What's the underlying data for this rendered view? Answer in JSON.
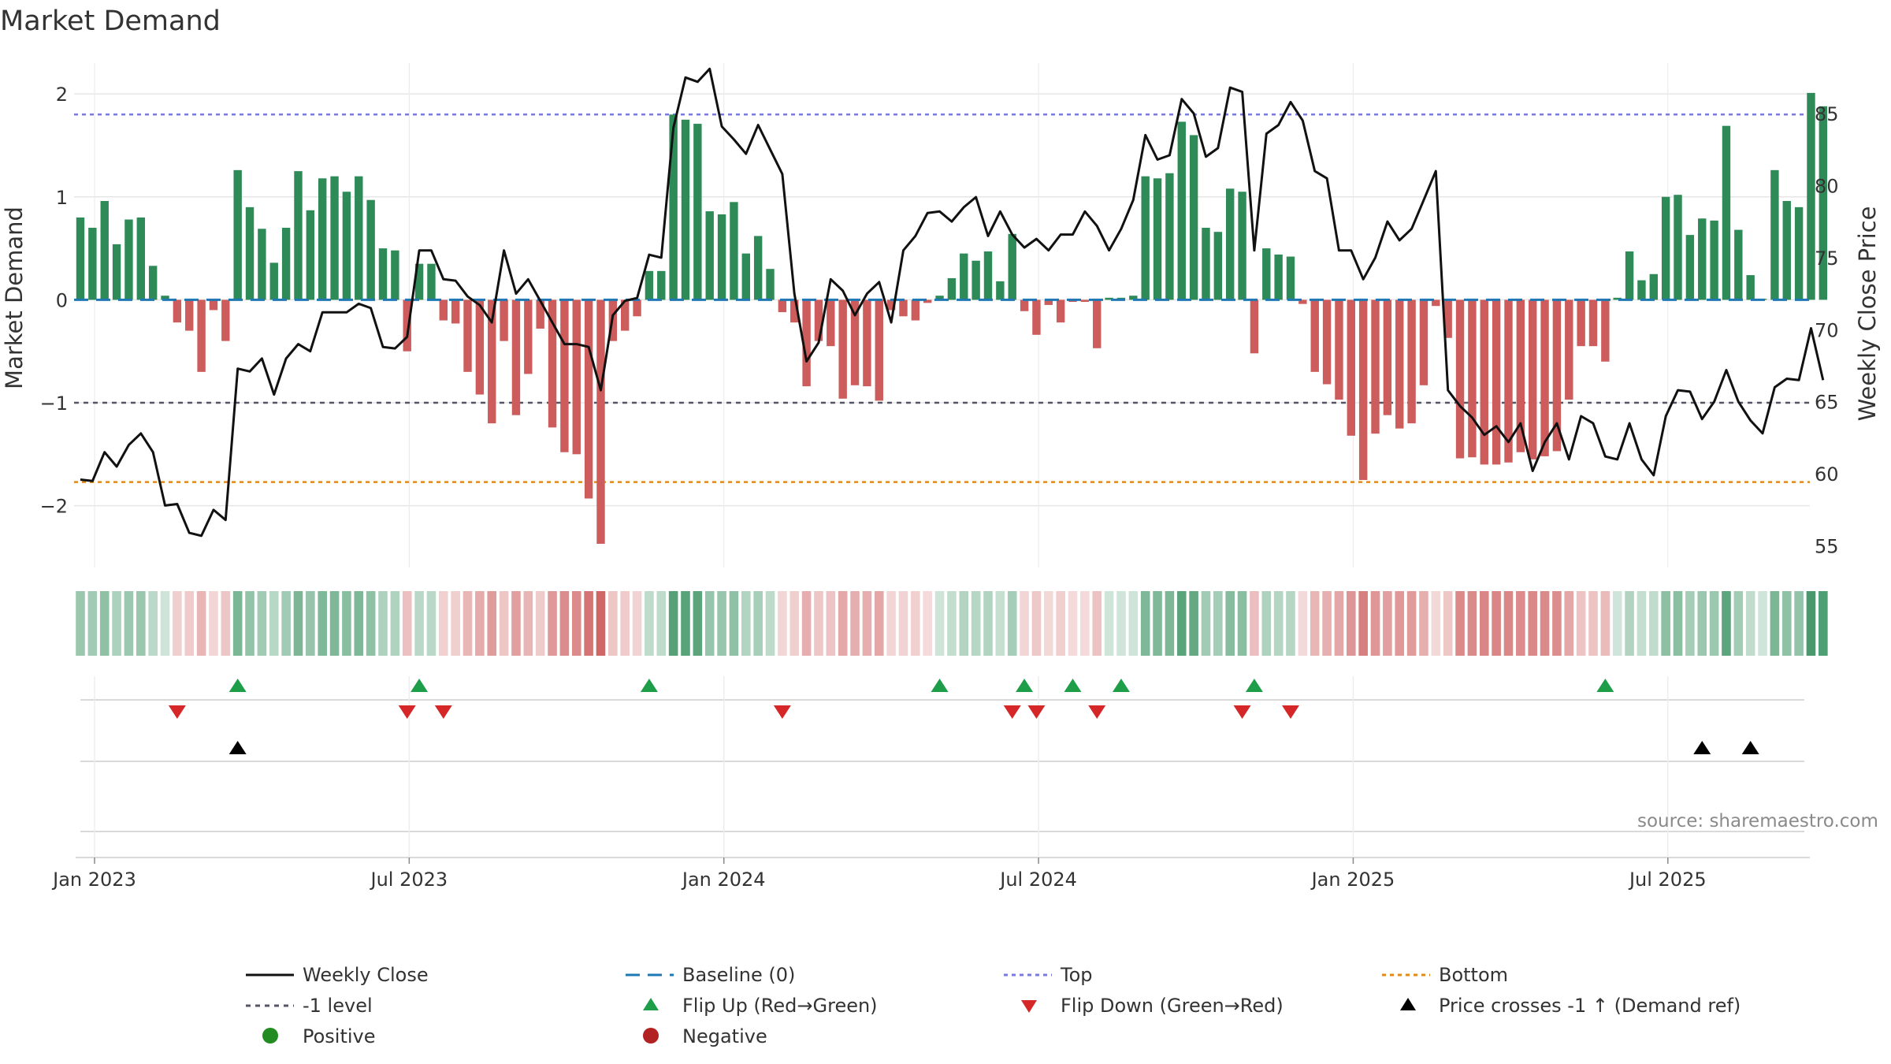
{
  "chart_data": {
    "type": "bar",
    "title": "Market Demand",
    "ylabel": "Market Demand",
    "y2label": "Weekly Close Price",
    "ylim": [
      -2.6,
      2.3
    ],
    "y2lim": [
      53.5,
      88.5
    ],
    "yticks": [
      "2",
      "1",
      "0",
      "−1",
      "−2"
    ],
    "ytick_values": [
      2,
      1,
      0,
      -1,
      -2
    ],
    "y2ticks": [
      "85",
      "80",
      "75",
      "70",
      "65",
      "60",
      "55"
    ],
    "y2tick_values": [
      85,
      80,
      75,
      70,
      65,
      60,
      55
    ],
    "xticks": [
      "Jan 2023",
      "Jul 2023",
      "Jan 2024",
      "Jul 2024",
      "Jan 2025",
      "Jul 2025"
    ],
    "xtick_weeks": [
      0,
      26,
      52,
      78,
      104,
      130
    ],
    "start_week": -1.5,
    "reference_lines": {
      "top": 1.8,
      "bottom": -1.77,
      "minus_one": -1,
      "baseline": 0
    },
    "series": [
      {
        "name": "Market Demand",
        "values": [
          0.8,
          0.7,
          0.96,
          0.54,
          0.78,
          0.8,
          0.33,
          0.04,
          -0.22,
          -0.3,
          -0.7,
          -0.1,
          -0.4,
          1.26,
          0.9,
          0.69,
          0.36,
          0.7,
          1.25,
          0.87,
          1.18,
          1.2,
          1.05,
          1.2,
          0.97,
          0.5,
          0.48,
          -0.5,
          0.35,
          0.35,
          -0.2,
          -0.23,
          -0.7,
          -0.92,
          -1.2,
          -0.4,
          -1.12,
          -0.72,
          -0.28,
          -1.24,
          -1.48,
          -1.5,
          -1.93,
          -2.37,
          -0.4,
          -0.3,
          -0.16,
          0.28,
          0.28,
          1.8,
          1.75,
          1.71,
          0.86,
          0.83,
          0.95,
          0.45,
          0.62,
          0.3,
          -0.12,
          -0.22,
          -0.84,
          -0.4,
          -0.45,
          -0.96,
          -0.83,
          -0.84,
          -0.98,
          -0.1,
          -0.16,
          -0.2,
          -0.03,
          0.04,
          0.21,
          0.45,
          0.38,
          0.47,
          0.18,
          0.64,
          -0.11,
          -0.34,
          -0.05,
          -0.22,
          -0.02,
          -0.02,
          -0.47,
          0.02,
          0.02,
          0.04,
          1.2,
          1.18,
          1.23,
          1.73,
          1.6,
          0.7,
          0.66,
          1.08,
          1.05,
          -0.52,
          0.5,
          0.44,
          0.42,
          -0.04,
          -0.7,
          -0.82,
          -0.97,
          -1.32,
          -1.75,
          -1.3,
          -1.12,
          -1.25,
          -1.2,
          -0.83,
          -0.06,
          -0.37,
          -1.54,
          -1.53,
          -1.6,
          -1.6,
          -1.58,
          -1.48,
          -1.55,
          -1.52,
          -1.47,
          -0.97,
          -0.45,
          -0.45,
          -0.6,
          0.02,
          0.47,
          0.19,
          0.25,
          1.0,
          1.02,
          0.63,
          0.79,
          0.77,
          1.69,
          0.68,
          0.24,
          0.01,
          1.26,
          0.96,
          0.9,
          2.01,
          1.88
        ]
      },
      {
        "name": "Weekly Close",
        "values": [
          59.6,
          59.5,
          61.5,
          60.5,
          62,
          62.8,
          61.5,
          57.8,
          57.9,
          55.9,
          55.7,
          57.5,
          56.8,
          67.3,
          67.1,
          68,
          65.5,
          68,
          69,
          68.5,
          71.2,
          71.2,
          71.2,
          71.8,
          71.5,
          68.8,
          68.7,
          69.5,
          75.5,
          75.5,
          73.5,
          73.4,
          72.3,
          71.7,
          70.5,
          75.5,
          72.5,
          73.5,
          72,
          70.5,
          69,
          69,
          68.8,
          65.8,
          71,
          72,
          72.2,
          75.2,
          75,
          84,
          87.5,
          87.2,
          88.1,
          84.1,
          83.2,
          82.2,
          84.2,
          82.5,
          80.8,
          72.5,
          67.8,
          69.1,
          73.5,
          72.7,
          71,
          72.5,
          73.3,
          70.5,
          75.5,
          76.5,
          78.1,
          78.2,
          77.5,
          78.5,
          79.2,
          76.5,
          78.2,
          76.6,
          75.7,
          76.3,
          75.5,
          76.6,
          76.6,
          78.2,
          77.2,
          75.5,
          77,
          79,
          83.5,
          81.8,
          82.1,
          86,
          85,
          82,
          82.6,
          86.8,
          86.5,
          75.5,
          83.6,
          84.2,
          85.8,
          84.5,
          81,
          80.5,
          75.5,
          75.5,
          73.5,
          75,
          77.5,
          76.2,
          77,
          79,
          81,
          65.8,
          64.7,
          63.9,
          62.7,
          63.3,
          62.2,
          63.5,
          60.2,
          62.2,
          63.5,
          61,
          64,
          63.5,
          61.2,
          61,
          63.5,
          61,
          59.9,
          64,
          65.8,
          65.7,
          63.8,
          65,
          67.2,
          65,
          63.7,
          62.8,
          66,
          66.6,
          66.5,
          70.1,
          66.5
        ]
      }
    ],
    "flip_up_weeks": [
      13,
      28,
      47,
      71,
      78,
      82,
      86,
      97,
      126
    ],
    "flip_down_weeks": [
      8,
      27,
      30,
      58,
      77,
      79,
      84,
      96,
      100
    ],
    "price_cross_weeks": [
      13,
      134,
      138
    ],
    "positive_color": "#2e8b57",
    "negative_color": "#cd5c5c",
    "price_color": "#111111",
    "top_color": "#7a7adc",
    "bottom_color": "#e08a1e",
    "baseline_color": "#1f77b4",
    "flip_up_color": "#1f9e4a",
    "flip_down_color": "#d62728",
    "legend": [
      "Weekly Close",
      "Baseline (0)",
      "Top",
      "Bottom",
      "-1 level",
      "Flip Up (Red→Green)",
      "Flip Down (Green→Red)",
      "Price crosses -1 ↑ (Demand ref)",
      "Positive",
      "Negative"
    ],
    "source": "source: sharemaestro.com"
  }
}
